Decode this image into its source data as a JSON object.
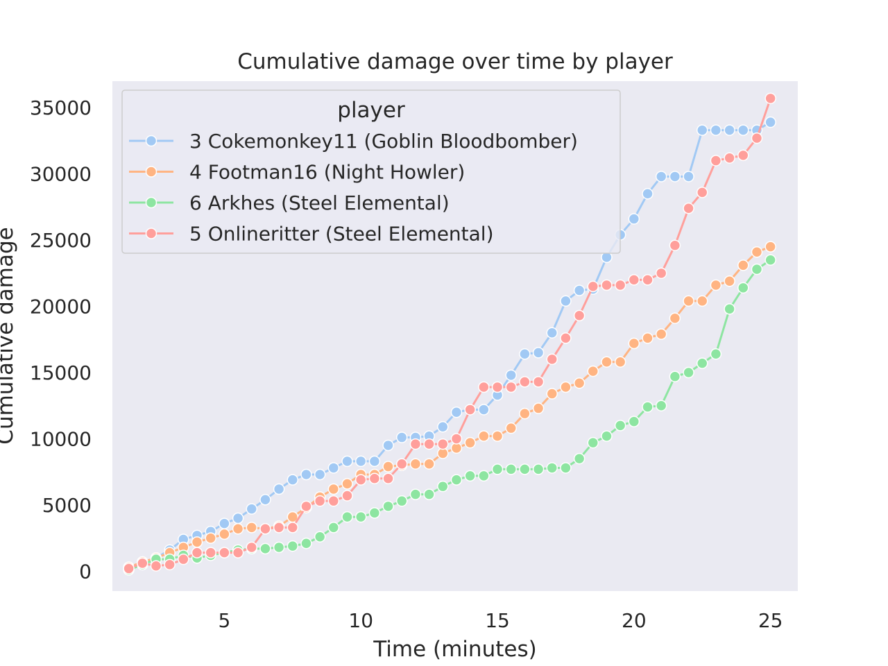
{
  "chart_data": {
    "type": "line",
    "title": "Cumulative damage over time by player",
    "xlabel": "Time (minutes)",
    "ylabel": "Cumulative damage",
    "xlim": [
      0.9,
      26.0
    ],
    "ylim": [
      -1500,
      37000
    ],
    "xticks": [
      5,
      10,
      15,
      20,
      25
    ],
    "yticks": [
      0,
      5000,
      10000,
      15000,
      20000,
      25000,
      30000,
      35000
    ],
    "grid": false,
    "background": "#eaeaf2",
    "legend": {
      "title": "player",
      "position": "upper-left"
    },
    "x": [
      1.5,
      2.0,
      2.5,
      3.0,
      3.5,
      4.0,
      4.5,
      5.0,
      5.5,
      6.0,
      6.5,
      7.0,
      7.5,
      8.0,
      8.5,
      9.0,
      9.5,
      10.0,
      10.5,
      11.0,
      11.5,
      12.0,
      12.5,
      13.0,
      13.5,
      14.0,
      14.5,
      15.0,
      15.5,
      16.0,
      16.5,
      17.0,
      17.5,
      18.0,
      18.5,
      19.0,
      19.5,
      20.0,
      20.5,
      21.0,
      21.5,
      22.0,
      22.5,
      23.0,
      23.5,
      24.0,
      24.5,
      25.0
    ],
    "series": [
      {
        "name": "3 Cokemonkey11 (Goblin Bloodbomber)",
        "color": "#a1c9f4",
        "values": [
          200,
          500,
          1000,
          1600,
          2400,
          2700,
          3000,
          3600,
          4000,
          4700,
          5400,
          6200,
          6900,
          7300,
          7300,
          7800,
          8300,
          8300,
          8300,
          9500,
          10100,
          10100,
          10200,
          10900,
          12000,
          12200,
          12200,
          13300,
          14800,
          16400,
          16500,
          18000,
          20400,
          21200,
          21300,
          23700,
          25400,
          26600,
          28500,
          29800,
          29800,
          29800,
          33300,
          33300,
          33300,
          33300,
          33300,
          33900
        ]
      },
      {
        "name": "4 Footman16 (Night Howler)",
        "color": "#ffb482",
        "values": [
          300,
          700,
          1000,
          1400,
          1800,
          2200,
          2500,
          2800,
          3200,
          3300,
          3200,
          3400,
          4100,
          4800,
          5600,
          6200,
          6600,
          7300,
          7300,
          7900,
          8000,
          8100,
          8100,
          8900,
          9300,
          9700,
          10200,
          10200,
          10800,
          11900,
          12300,
          13400,
          13900,
          14200,
          15100,
          15800,
          15800,
          17200,
          17600,
          17900,
          19100,
          20400,
          20400,
          21600,
          21900,
          23100,
          24100,
          24500
        ]
      },
      {
        "name": "6 Arkhes (Steel Elemental)",
        "color": "#8de5a1",
        "values": [
          100,
          500,
          900,
          900,
          1200,
          1000,
          1200,
          1400,
          1600,
          1700,
          1700,
          1800,
          1900,
          2100,
          2600,
          3300,
          4100,
          4100,
          4400,
          4900,
          5300,
          5800,
          5800,
          6400,
          6900,
          7200,
          7200,
          7700,
          7700,
          7700,
          7700,
          7800,
          7800,
          8500,
          9700,
          10200,
          11000,
          11300,
          12400,
          12500,
          14700,
          15000,
          15700,
          16400,
          19800,
          21400,
          22800,
          23500
        ]
      },
      {
        "name": "5 Onlineritter (Steel Elemental)",
        "color": "#ff9f9b",
        "values": [
          200,
          600,
          400,
          500,
          900,
          1400,
          1400,
          1400,
          1400,
          1800,
          3200,
          3300,
          3300,
          4900,
          5300,
          5300,
          5700,
          6900,
          7000,
          7000,
          8100,
          9600,
          9600,
          9600,
          10000,
          12200,
          13900,
          13900,
          13900,
          14300,
          14300,
          16000,
          17600,
          19300,
          21500,
          21600,
          21600,
          22000,
          22000,
          22500,
          24600,
          27400,
          28600,
          31000,
          31200,
          31400,
          32700,
          35700
        ]
      }
    ]
  }
}
